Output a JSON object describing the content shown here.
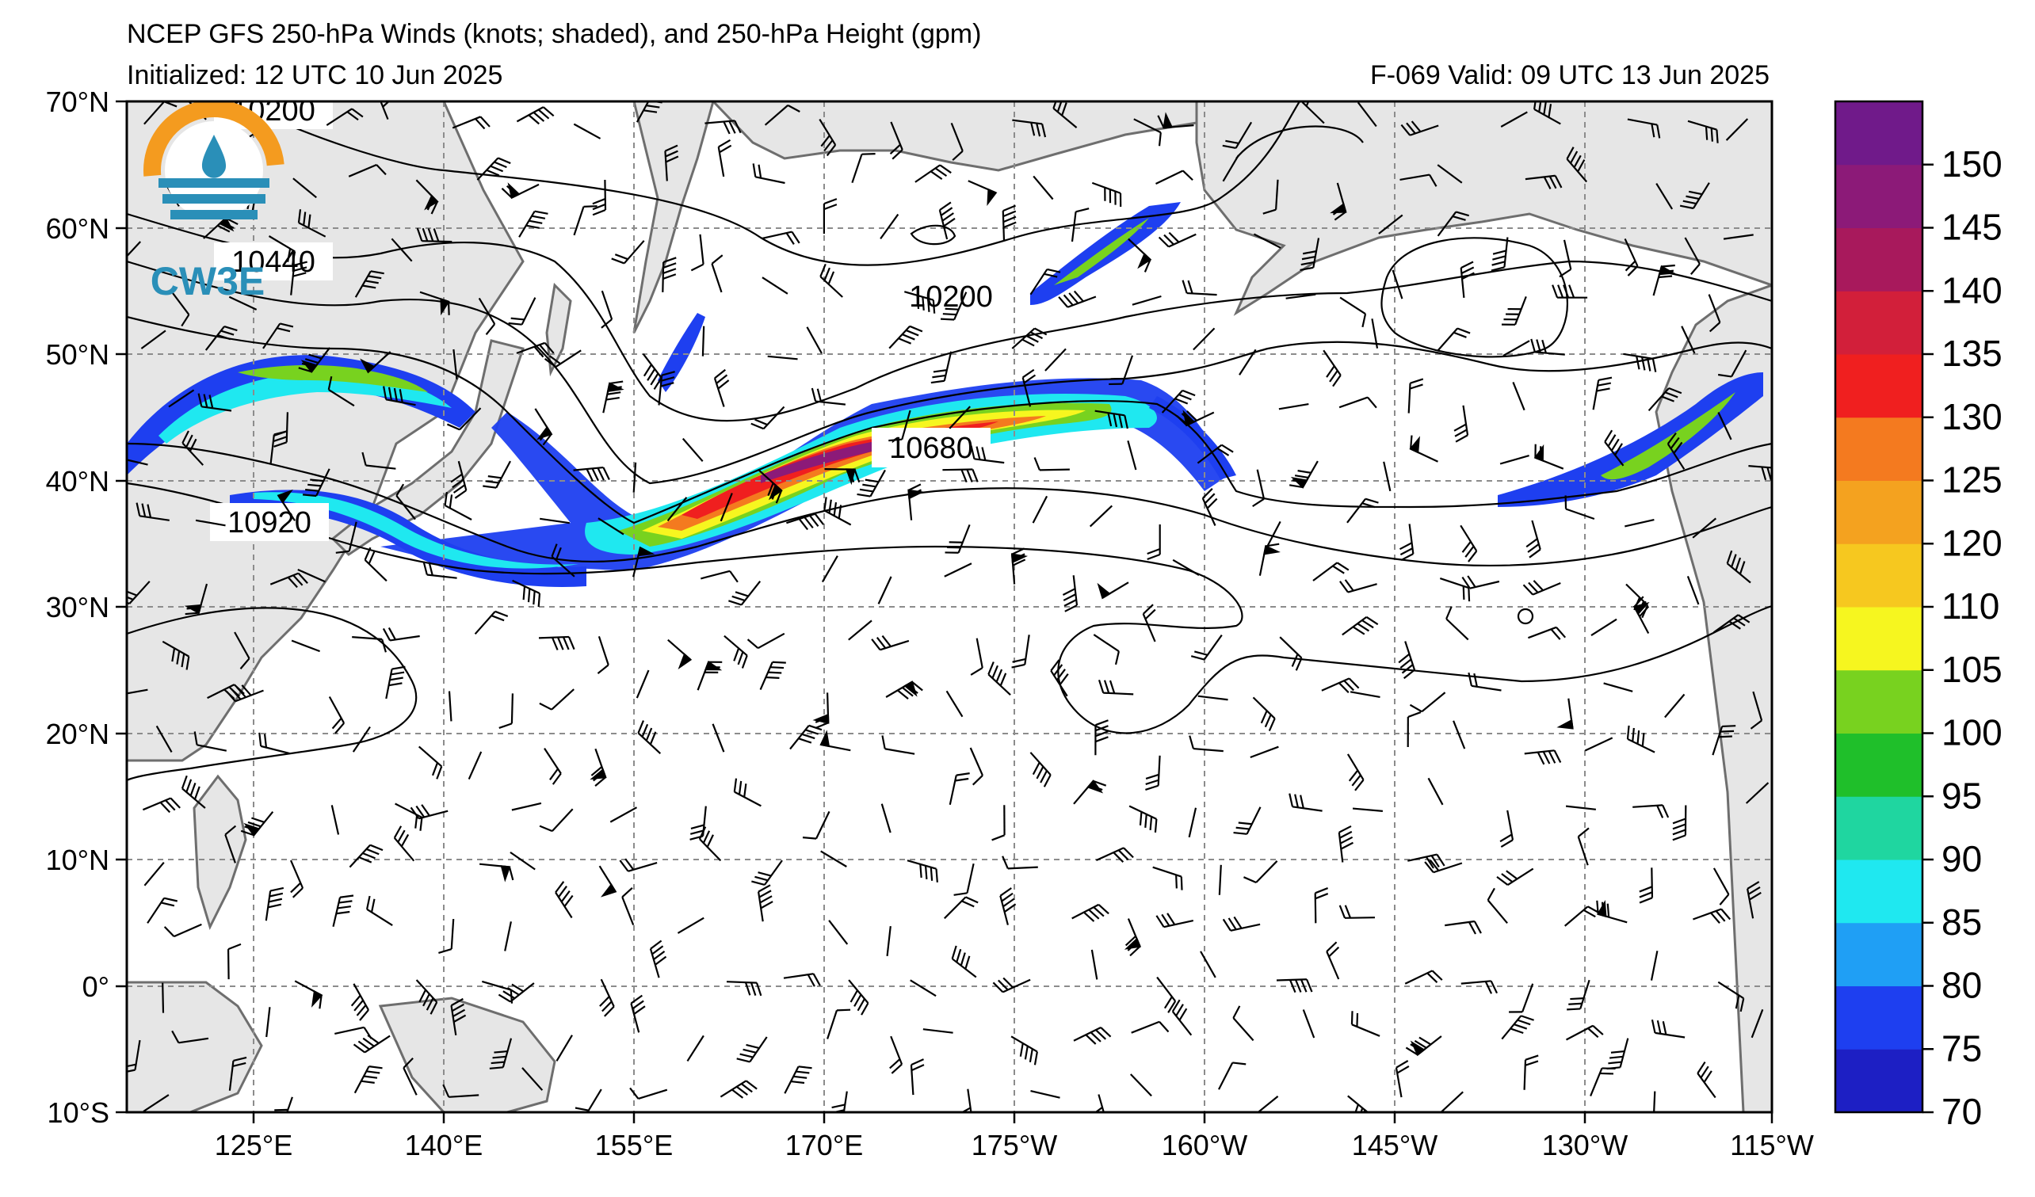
{
  "header": {
    "title": "NCEP GFS 250-hPa Winds (knots; shaded), and 250-hPa Height (gpm)",
    "initialized": "Initialized: 12 UTC 10 Jun 2025",
    "valid": "F-069  Valid: 09 UTC 13 Jun 2025"
  },
  "map": {
    "lon_labels": [
      "125°E",
      "140°E",
      "155°E",
      "170°E",
      "175°W",
      "160°W",
      "145°W",
      "130°W",
      "115°W"
    ],
    "lat_labels": [
      "70°N",
      "60°N",
      "50°N",
      "40°N",
      "30°N",
      "20°N",
      "10°N",
      "0°",
      "10°S"
    ],
    "contour_labels": [
      {
        "text": "10200",
        "lon": 127,
        "lat": 69.2
      },
      {
        "text": "10440",
        "lon": 126.5,
        "lat": 57.5
      },
      {
        "text": "10200",
        "lon": 176.5,
        "lat": 54.5
      },
      {
        "text": "10680",
        "lon": 178.5,
        "lat": 42.3
      },
      {
        "text": "10920",
        "lon": 121.5,
        "lat": 36.8
      }
    ],
    "land_color": "#e6e6e6",
    "coast_color": "#6e6e6e"
  },
  "logo": {
    "text": "CW3E"
  },
  "colorbar": {
    "ticks": [
      "70",
      "75",
      "80",
      "85",
      "90",
      "95",
      "100",
      "105",
      "110",
      "120",
      "125",
      "130",
      "135",
      "140",
      "145",
      "150"
    ],
    "colors": [
      "#1d1fc4",
      "#1e3ff0",
      "#1f9ff5",
      "#1fe8f0",
      "#1fd6a0",
      "#1fbf2a",
      "#78d21f",
      "#f6f61f",
      "#f6c81f",
      "#f4a21f",
      "#f47a1f",
      "#f01f1f",
      "#d21f3a",
      "#a8195c",
      "#8c1a78",
      "#701a8a"
    ]
  }
}
